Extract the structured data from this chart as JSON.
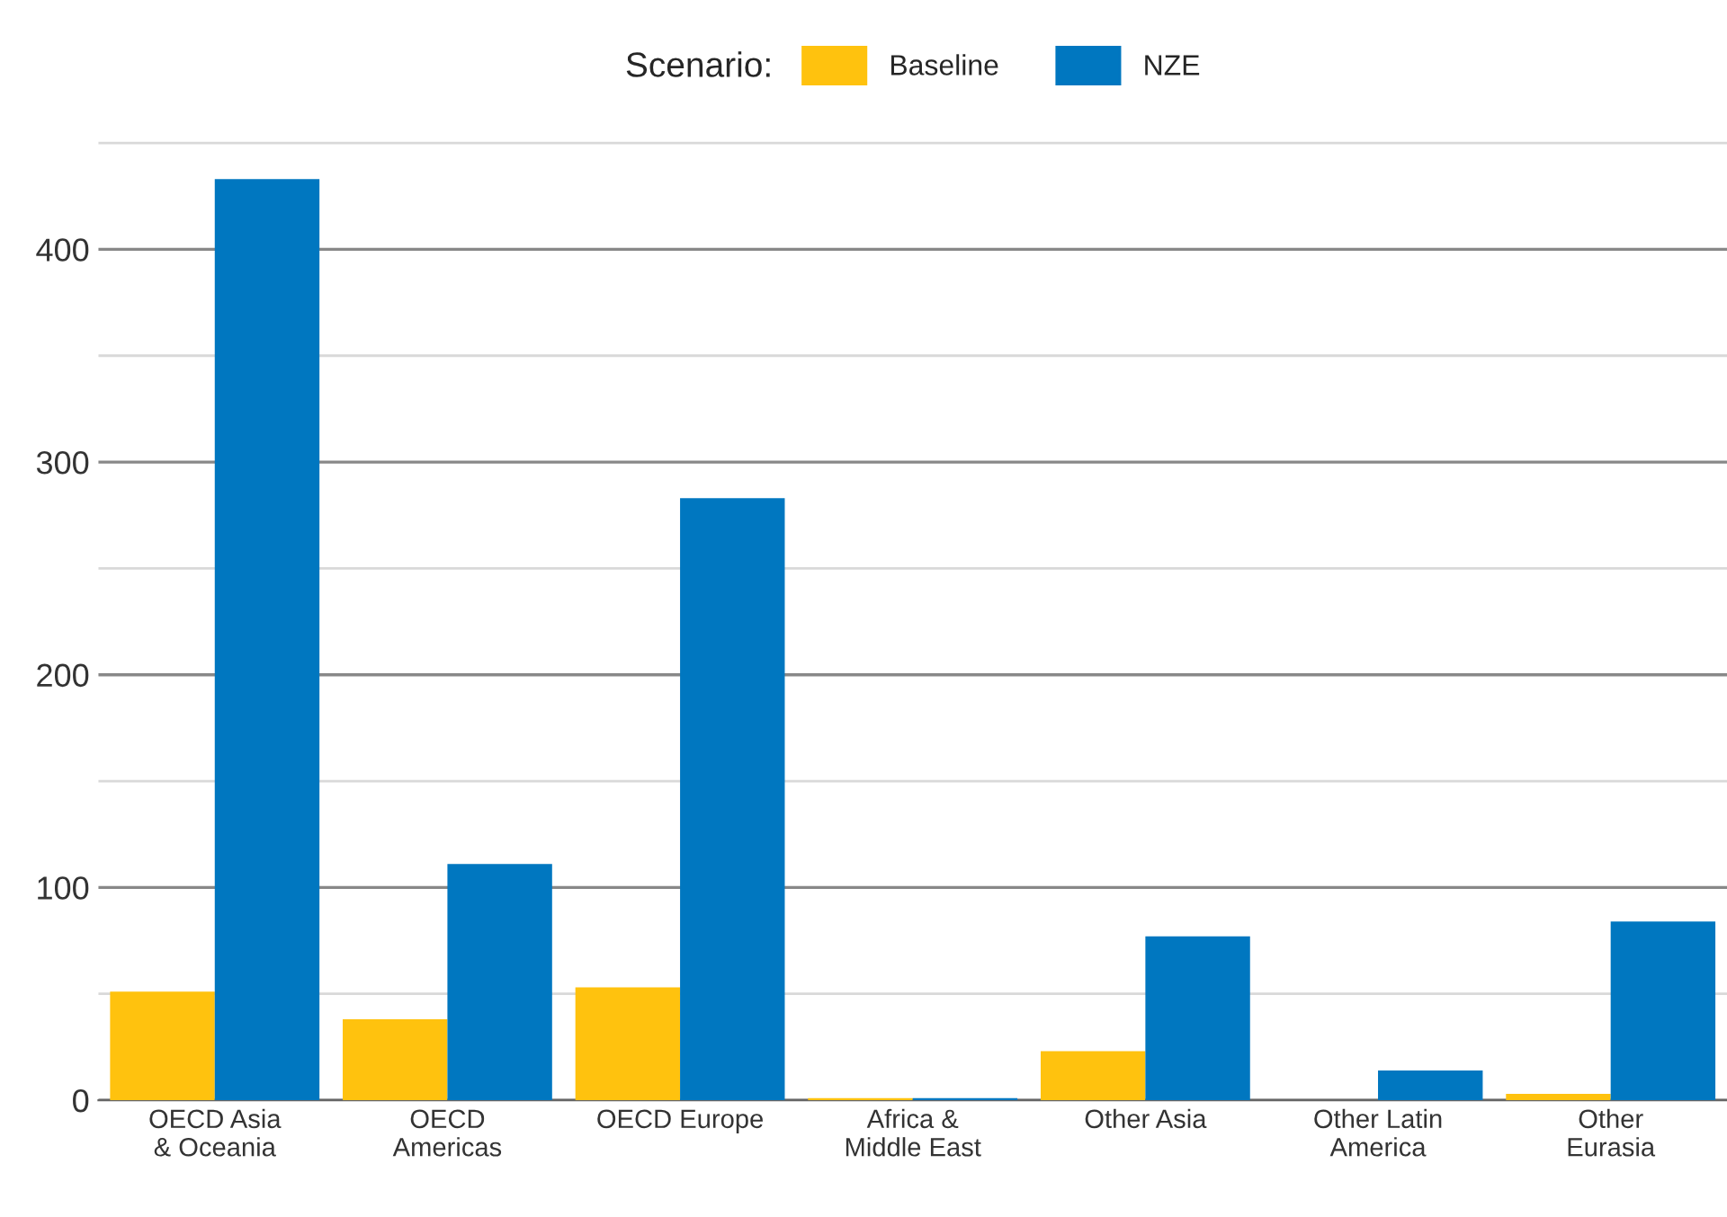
{
  "chart_data": {
    "type": "bar",
    "categories": [
      "OECD Asia\n& Oceania",
      "OECD\nAmericas",
      "OECD Europe",
      "Africa &\nMiddle East",
      "Other Asia",
      "Other Latin\nAmerica",
      "Other\nEurasia"
    ],
    "series": [
      {
        "name": "Baseline",
        "color": "#ffc20e",
        "values": [
          51,
          38,
          53,
          1,
          23,
          null,
          3
        ]
      },
      {
        "name": "NZE",
        "color": "#0077c0",
        "values": [
          433,
          111,
          283,
          1,
          77,
          14,
          84
        ]
      }
    ],
    "legend_title": "Scenario:",
    "legend": "top",
    "grid": "y",
    "ylim": [
      0,
      452
    ],
    "yticks": [
      0,
      {
        "value": 50,
        "label": null
      },
      100,
      {
        "value": 150,
        "label": null
      },
      200,
      {
        "value": 250,
        "label": null
      },
      300,
      {
        "value": 350,
        "label": null
      },
      400,
      {
        "value": 450,
        "label": null
      }
    ]
  }
}
